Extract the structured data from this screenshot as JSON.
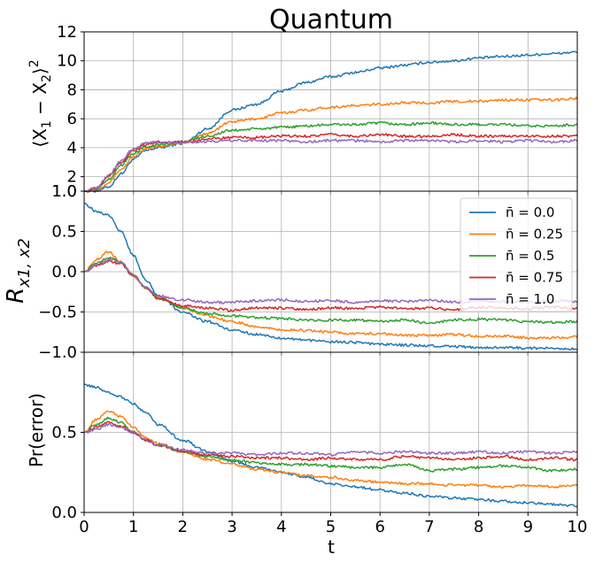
{
  "title": "Quantum",
  "colors": [
    "#1f77b4",
    "#ff7f0e",
    "#2ca02c",
    "#d62728",
    "#9467bd"
  ],
  "chart_data": [
    {
      "type": "line",
      "name": "variance",
      "ylabel": "⟨X₁ − X₂⟩²",
      "xlim": [
        0,
        10
      ],
      "ylim": [
        1,
        12
      ],
      "yticks": [
        1,
        2,
        4,
        6,
        8,
        10,
        12
      ],
      "ytick_labels": [
        "1.0",
        "2",
        "4",
        "6",
        "8",
        "10",
        "12"
      ],
      "grid": true,
      "x": [
        0,
        0.25,
        0.5,
        0.75,
        1,
        1.25,
        1.5,
        2,
        2.5,
        3,
        3.5,
        4,
        4.5,
        5,
        5.5,
        6,
        6.5,
        7,
        7.5,
        8,
        8.5,
        9,
        9.5,
        10
      ],
      "series": [
        {
          "name": "n̄ = 0.0",
          "values": [
            1.0,
            1.02,
            1.3,
            2.2,
            3.2,
            3.8,
            4.0,
            4.3,
            5.3,
            6.6,
            7.0,
            7.9,
            8.5,
            8.9,
            9.2,
            9.5,
            9.7,
            9.9,
            10.0,
            10.2,
            10.3,
            10.4,
            10.5,
            10.6
          ]
        },
        {
          "name": "n̄ = 0.25",
          "values": [
            1.0,
            1.1,
            1.6,
            2.5,
            3.4,
            3.9,
            4.1,
            4.35,
            5.0,
            5.8,
            6.0,
            6.4,
            6.6,
            6.8,
            6.9,
            7.0,
            7.1,
            7.1,
            7.2,
            7.2,
            7.3,
            7.3,
            7.3,
            7.4
          ]
        },
        {
          "name": "n̄ = 0.5",
          "values": [
            1.0,
            1.15,
            1.8,
            2.8,
            3.6,
            4.05,
            4.2,
            4.4,
            4.8,
            5.2,
            5.3,
            5.4,
            5.5,
            5.6,
            5.6,
            5.7,
            5.6,
            5.7,
            5.6,
            5.6,
            5.6,
            5.5,
            5.5,
            5.6
          ]
        },
        {
          "name": "n̄ = 0.75",
          "values": [
            1.0,
            1.2,
            2.0,
            3.0,
            3.8,
            4.2,
            4.35,
            4.4,
            4.6,
            4.7,
            4.7,
            4.8,
            4.8,
            4.9,
            4.8,
            4.9,
            4.8,
            4.8,
            4.9,
            4.8,
            4.8,
            4.8,
            4.8,
            4.8
          ]
        },
        {
          "name": "n̄ = 1.0",
          "values": [
            1.0,
            1.25,
            2.1,
            3.1,
            3.9,
            4.3,
            4.4,
            4.4,
            4.4,
            4.5,
            4.5,
            4.5,
            4.4,
            4.5,
            4.5,
            4.4,
            4.5,
            4.5,
            4.4,
            4.5,
            4.4,
            4.5,
            4.4,
            4.5
          ]
        }
      ]
    },
    {
      "type": "line",
      "name": "correlation",
      "ylabel": "R_x1,x2",
      "xlim": [
        0,
        10
      ],
      "ylim": [
        -1.0,
        1.0
      ],
      "yticks": [
        -1.0,
        -0.5,
        0.0,
        0.5,
        1.0
      ],
      "ytick_labels": [
        "−1.0",
        "−0.5",
        "0.0",
        "0.5",
        "1.0"
      ],
      "grid": true,
      "legend": "top-right",
      "x": [
        0,
        0.25,
        0.5,
        0.75,
        1,
        1.25,
        1.5,
        2,
        2.5,
        3,
        3.5,
        4,
        4.5,
        5,
        5.5,
        6,
        6.5,
        7,
        7.5,
        8,
        8.5,
        9,
        9.5,
        10
      ],
      "series": [
        {
          "name": "n̄ = 0.0",
          "values": [
            0.85,
            0.75,
            0.7,
            0.5,
            0.2,
            -0.1,
            -0.3,
            -0.5,
            -0.62,
            -0.72,
            -0.78,
            -0.82,
            -0.85,
            -0.87,
            -0.88,
            -0.9,
            -0.91,
            -0.92,
            -0.93,
            -0.94,
            -0.94,
            -0.95,
            -0.95,
            -0.96
          ]
        },
        {
          "name": "n̄ = 0.25",
          "values": [
            0.0,
            0.15,
            0.25,
            0.12,
            -0.05,
            -0.2,
            -0.32,
            -0.45,
            -0.55,
            -0.62,
            -0.68,
            -0.72,
            -0.73,
            -0.75,
            -0.77,
            -0.77,
            -0.79,
            -0.79,
            -0.78,
            -0.8,
            -0.8,
            -0.82,
            -0.82,
            -0.81
          ]
        },
        {
          "name": "n̄ = 0.5",
          "values": [
            0.0,
            0.1,
            0.18,
            0.12,
            -0.05,
            -0.2,
            -0.33,
            -0.45,
            -0.52,
            -0.55,
            -0.57,
            -0.58,
            -0.6,
            -0.6,
            -0.6,
            -0.62,
            -0.6,
            -0.64,
            -0.6,
            -0.59,
            -0.6,
            -0.62,
            -0.63,
            -0.62
          ]
        },
        {
          "name": "n̄ = 0.75",
          "values": [
            0.0,
            0.08,
            0.13,
            0.1,
            -0.05,
            -0.2,
            -0.33,
            -0.42,
            -0.45,
            -0.48,
            -0.45,
            -0.45,
            -0.47,
            -0.45,
            -0.46,
            -0.44,
            -0.46,
            -0.45,
            -0.47,
            -0.44,
            -0.45,
            -0.46,
            -0.44,
            -0.46
          ]
        },
        {
          "name": "n̄ = 1.0",
          "values": [
            0.0,
            0.08,
            0.15,
            0.12,
            -0.05,
            -0.2,
            -0.3,
            -0.35,
            -0.38,
            -0.38,
            -0.36,
            -0.35,
            -0.37,
            -0.36,
            -0.38,
            -0.36,
            -0.37,
            -0.35,
            -0.38,
            -0.36,
            -0.37,
            -0.38,
            -0.36,
            -0.37
          ]
        }
      ]
    },
    {
      "type": "line",
      "name": "error",
      "ylabel": "Pr(error)",
      "xlabel": "t",
      "xlim": [
        0,
        10
      ],
      "ylim": [
        0.0,
        1.0
      ],
      "xticks": [
        0,
        1,
        2,
        3,
        4,
        5,
        6,
        7,
        8,
        9,
        10
      ],
      "yticks": [
        0.0,
        0.5
      ],
      "ytick_labels": [
        "0.0",
        "0.5"
      ],
      "grid": true,
      "x": [
        0,
        0.25,
        0.5,
        0.75,
        1,
        1.25,
        1.5,
        2,
        2.5,
        3,
        3.5,
        4,
        4.5,
        5,
        5.5,
        6,
        6.5,
        7,
        7.5,
        8,
        8.5,
        9,
        9.5,
        10
      ],
      "series": [
        {
          "name": "n̄ = 0.0",
          "values": [
            0.8,
            0.78,
            0.75,
            0.72,
            0.68,
            0.62,
            0.55,
            0.45,
            0.38,
            0.32,
            0.28,
            0.25,
            0.22,
            0.18,
            0.16,
            0.14,
            0.12,
            0.1,
            0.09,
            0.08,
            0.07,
            0.06,
            0.05,
            0.04
          ]
        },
        {
          "name": "n̄ = 0.25",
          "values": [
            0.5,
            0.58,
            0.63,
            0.6,
            0.53,
            0.47,
            0.43,
            0.38,
            0.33,
            0.3,
            0.27,
            0.25,
            0.23,
            0.22,
            0.2,
            0.19,
            0.18,
            0.18,
            0.17,
            0.17,
            0.16,
            0.17,
            0.16,
            0.17
          ]
        },
        {
          "name": "n̄ = 0.5",
          "values": [
            0.5,
            0.55,
            0.59,
            0.56,
            0.5,
            0.45,
            0.42,
            0.38,
            0.35,
            0.33,
            0.31,
            0.3,
            0.3,
            0.29,
            0.28,
            0.28,
            0.3,
            0.26,
            0.27,
            0.28,
            0.29,
            0.28,
            0.26,
            0.27
          ]
        },
        {
          "name": "n̄ = 0.75",
          "values": [
            0.5,
            0.53,
            0.56,
            0.54,
            0.5,
            0.45,
            0.42,
            0.38,
            0.36,
            0.35,
            0.34,
            0.34,
            0.33,
            0.34,
            0.33,
            0.33,
            0.35,
            0.34,
            0.33,
            0.34,
            0.35,
            0.33,
            0.34,
            0.33
          ]
        },
        {
          "name": "n̄ = 1.0",
          "values": [
            0.5,
            0.52,
            0.55,
            0.53,
            0.5,
            0.45,
            0.42,
            0.39,
            0.37,
            0.37,
            0.36,
            0.37,
            0.37,
            0.36,
            0.38,
            0.37,
            0.38,
            0.37,
            0.37,
            0.38,
            0.37,
            0.38,
            0.37,
            0.38
          ]
        }
      ]
    }
  ]
}
